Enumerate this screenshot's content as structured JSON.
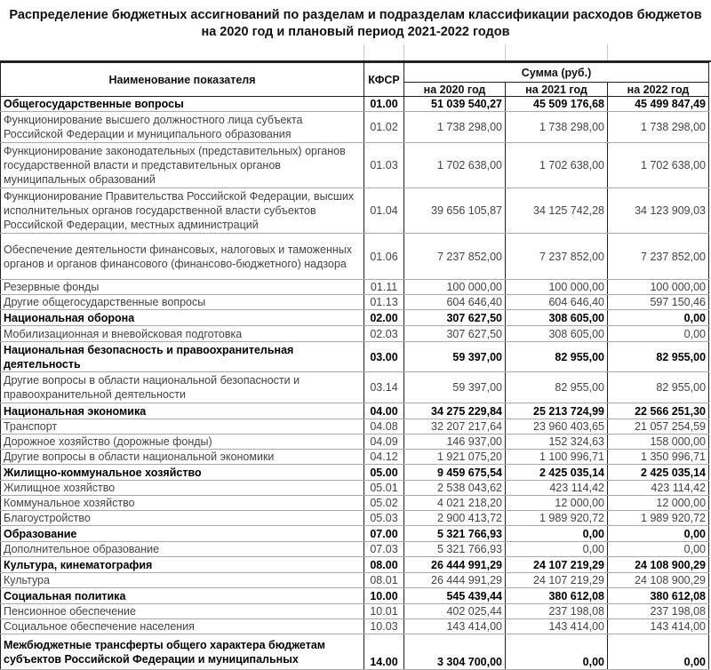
{
  "title": "Распределение бюджетных ассигнований по разделам и подразделам классификации расходов бюджетов на 2020 год и плановый период 2021-2022 годов",
  "header": {
    "name": "Наименование показателя",
    "code": "КФСР",
    "sum": "Сумма (руб.)",
    "y2020": "на 2020 год",
    "y2021": "на 2021 год",
    "y2022": "на 2022 год"
  },
  "rows": [
    {
      "name": "Общегосударственные вопросы",
      "code": "01.00",
      "v2020": "51 039 540,27",
      "v2021": "45 509 176,68",
      "v2022": "45 499 847,49",
      "section": true
    },
    {
      "name": "Функционирование высшего должностного лица субъекта Российской Федерации и муниципального образования",
      "code": "01.02",
      "v2020": "1 738 298,00",
      "v2021": "1 738 298,00",
      "v2022": "1 738 298,00"
    },
    {
      "name": "Функционирование законодательных (представительных) органов государственной власти и представительных органов муниципальных образований",
      "code": "01.03",
      "v2020": "1 702 638,00",
      "v2021": "1 702 638,00",
      "v2022": "1 702 638,00"
    },
    {
      "name": "Функционирование Правительства Российской Федерации, высших исполнительных органов государственной власти субъектов Российской Федерации, местных администраций",
      "code": "01.04",
      "v2020": "39 656 105,87",
      "v2021": "34 125 742,28",
      "v2022": "34 123 909,03"
    },
    {
      "name": "Обеспечение деятельности финансовых, налоговых и таможенных органов и органов финансового (финансово-бюджетного) надзора",
      "code": "01.06",
      "v2020": "7 237 852,00",
      "v2021": "7 237 852,00",
      "v2022": "7 237 852,00"
    },
    {
      "name": "Резервные фонды",
      "code": "01.11",
      "v2020": "100 000,00",
      "v2021": "100 000,00",
      "v2022": "100 000,00"
    },
    {
      "name": "Другие общегосударственные вопросы",
      "code": "01.13",
      "v2020": "604 646,40",
      "v2021": "604 646,40",
      "v2022": "597 150,46"
    },
    {
      "name": "Национальная оборона",
      "code": "02.00",
      "v2020": "307 627,50",
      "v2021": "308 605,00",
      "v2022": "0,00",
      "section": true
    },
    {
      "name": "Мобилизационная и вневойсковая подготовка",
      "code": "02.03",
      "v2020": "307 627,50",
      "v2021": "308 605,00",
      "v2022": "0,00"
    },
    {
      "name": "Национальная безопасность и правоохранительная деятельность",
      "code": "03.00",
      "v2020": "59 397,00",
      "v2021": "82 955,00",
      "v2022": "82 955,00",
      "section": true
    },
    {
      "name": "Другие вопросы в области национальной безопасности и правоохранительной деятельности",
      "code": "03.14",
      "v2020": "59 397,00",
      "v2021": "82 955,00",
      "v2022": "82 955,00"
    },
    {
      "name": "Национальная экономика",
      "code": "04.00",
      "v2020": "34 275 229,84",
      "v2021": "25 213 724,99",
      "v2022": "22 566 251,30",
      "section": true
    },
    {
      "name": "Транспорт",
      "code": "04.08",
      "v2020": "32 207 217,64",
      "v2021": "23 960 403,65",
      "v2022": "21 057 254,59"
    },
    {
      "name": "Дорожное хозяйство (дорожные фонды)",
      "code": "04.09",
      "v2020": "146 937,00",
      "v2021": "152 324,63",
      "v2022": "158 000,00"
    },
    {
      "name": "Другие вопросы в области национальной экономики",
      "code": "04.12",
      "v2020": "1 921 075,20",
      "v2021": "1 100 996,71",
      "v2022": "1 350 996,71"
    },
    {
      "name": "Жилищно-коммунальное хозяйство",
      "code": "05.00",
      "v2020": "9 459 675,54",
      "v2021": "2 425 035,14",
      "v2022": "2 425 035,14",
      "section": true
    },
    {
      "name": "Жилищное хозяйство",
      "code": "05.01",
      "v2020": "2 538 043,62",
      "v2021": "423 114,42",
      "v2022": "423 114,42"
    },
    {
      "name": "Коммунальное хозяйство",
      "code": "05.02",
      "v2020": "4 021 218,20",
      "v2021": "12 000,00",
      "v2022": "12 000,00"
    },
    {
      "name": "Благоустройство",
      "code": "05.03",
      "v2020": "2 900 413,72",
      "v2021": "1 989 920,72",
      "v2022": "1 989 920,72"
    },
    {
      "name": "Образование",
      "code": "07.00",
      "v2020": "5 321 766,93",
      "v2021": "0,00",
      "v2022": "0,00",
      "section": true
    },
    {
      "name": "Дополнительное образование",
      "code": "07.03",
      "v2020": "5 321 766,93",
      "v2021": "0,00",
      "v2022": "0,00"
    },
    {
      "name": "Культура, кинематография",
      "code": "08.00",
      "v2020": "26 444 991,29",
      "v2021": "24 107 219,29",
      "v2022": "24 108 900,29",
      "section": true
    },
    {
      "name": "Культура",
      "code": "08.01",
      "v2020": "26 444 991,29",
      "v2021": "24 107 219,29",
      "v2022": "24 108 900,29"
    },
    {
      "name": "Социальная политика",
      "code": "10.00",
      "v2020": "545 439,44",
      "v2021": "380 612,08",
      "v2022": "380 612,08",
      "section": true
    },
    {
      "name": "Пенсионное обеспечение",
      "code": "10.01",
      "v2020": "402 025,44",
      "v2021": "237 198,08",
      "v2022": "237 198,08"
    },
    {
      "name": "Социальное обеспечение населения",
      "code": "10.03",
      "v2020": "143 414,00",
      "v2021": "143 414,00",
      "v2022": "143 414,00"
    },
    {
      "name": "Межбюджетные трансферты общего характера бюджетам субъектов Российской Федерации и муниципальных",
      "code": "14.00",
      "v2020": "3 304 700,00",
      "v2021": "0,00",
      "v2022": "0,00",
      "section": true
    }
  ]
}
